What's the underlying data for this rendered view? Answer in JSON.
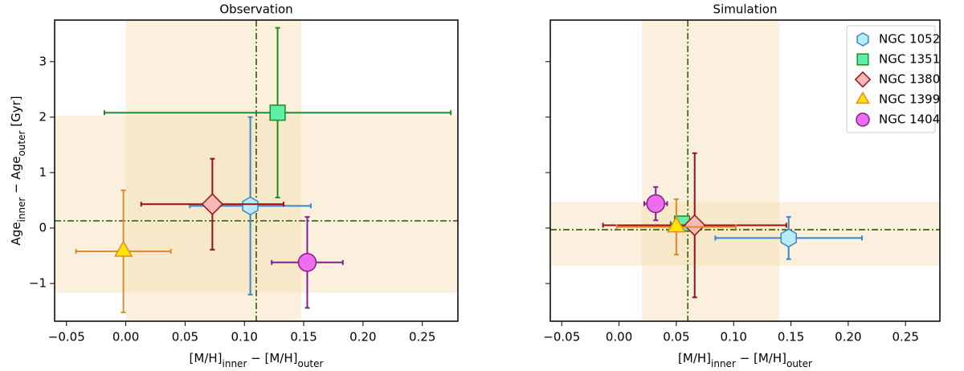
{
  "chart_data": [
    {
      "type": "scatter",
      "title": "Observation",
      "xlabel": [
        "[M/H]",
        "inner",
        " − [M/H]",
        "outer"
      ],
      "ylabel": [
        "Age",
        "inner",
        " − Age",
        "outer",
        " [Gyr]"
      ],
      "xlim": [
        -0.06,
        0.28
      ],
      "ylim": [
        -1.68,
        3.75
      ],
      "xticks": [
        {
          "value": -0.05,
          "label": "−0.05"
        },
        {
          "value": 0,
          "label": "0.00"
        },
        0.05,
        {
          "value": 0.1,
          "label": "0.10"
        },
        0.15,
        {
          "value": 0.2,
          "label": "0.20"
        },
        0.25
      ],
      "yticks": [
        {
          "value": -1,
          "label": "−1"
        },
        0,
        1,
        2,
        3
      ],
      "vline": 0.11,
      "hline": 0.13,
      "vband": [
        0.0,
        0.148
      ],
      "hband": [
        -1.17,
        2.03
      ],
      "band_color": "#f5deb3",
      "line_color": "#4a6b1a",
      "series": [
        {
          "marker": "hexagon",
          "color": "#3a86c8",
          "fill": "#b8ecf8",
          "x": [
            0.105
          ],
          "values": [
            0.4
          ],
          "xerr": [
            0.051
          ],
          "yerr": [
            1.6
          ]
        },
        {
          "marker": "square",
          "color": "#1f8a1f",
          "fill": "#5ef0a8",
          "x": [
            0.128
          ],
          "values": [
            2.08
          ],
          "xerr": [
            0.146
          ],
          "yerr": [
            1.53
          ]
        },
        {
          "marker": "diamond",
          "color": "#9b1010",
          "fill": "#f6b9b9",
          "x": [
            0.073
          ],
          "values": [
            0.43
          ],
          "xerr": [
            0.06
          ],
          "yerr": [
            0.82
          ]
        },
        {
          "marker": "triangle",
          "color": "#e08a2a",
          "fill": "#ffe600",
          "x": [
            -0.002
          ],
          "values": [
            -0.42
          ],
          "xerr": [
            0.04
          ],
          "yerr": [
            1.1
          ]
        },
        {
          "marker": "circle",
          "color": "#8b1a8b",
          "fill": "#ee6cee",
          "x": [
            0.153
          ],
          "values": [
            -0.62
          ],
          "xerr": [
            0.03
          ],
          "yerr": [
            0.82
          ]
        }
      ]
    },
    {
      "type": "scatter",
      "title": "Simulation",
      "xlabel": [
        "[M/H]",
        "inner",
        " − [M/H]",
        "outer"
      ],
      "xlim": [
        -0.06,
        0.28
      ],
      "ylim": [
        -1.68,
        3.75
      ],
      "xticks": [
        {
          "value": -0.05,
          "label": "−0.05"
        },
        {
          "value": 0,
          "label": "0.00"
        },
        0.05,
        {
          "value": 0.1,
          "label": "0.10"
        },
        0.15,
        {
          "value": 0.2,
          "label": "0.20"
        },
        0.25
      ],
      "yticks": [
        -1,
        0,
        1,
        2,
        3
      ],
      "ytick_labels": false,
      "vline": 0.06,
      "hline": -0.03,
      "vband": [
        0.02,
        0.14
      ],
      "hband": [
        -0.68,
        0.47
      ],
      "band_color": "#f5deb3",
      "line_color": "#4a6b1a",
      "legend": "upper right",
      "series": [
        {
          "name": "NGC 1052",
          "marker": "hexagon",
          "color": "#3a86c8",
          "fill": "#b8ecf8",
          "x": [
            0.148
          ],
          "values": [
            -0.18
          ],
          "xerr": [
            0.064
          ],
          "yerr": [
            0.38
          ]
        },
        {
          "name": "NGC 1351",
          "marker": "square",
          "color": "#1f8a1f",
          "fill": "#5ef0a8",
          "x": [
            0.055
          ],
          "values": [
            0.08
          ],
          "xerr": [
            0.01
          ],
          "yerr": [
            0.1
          ]
        },
        {
          "name": "NGC 1380",
          "marker": "diamond",
          "color": "#9b1010",
          "fill": "#f6b9b9",
          "x": [
            0.066
          ],
          "values": [
            0.05
          ],
          "xerr": [
            0.08
          ],
          "yerr": [
            1.3
          ]
        },
        {
          "name": "NGC 1399",
          "marker": "triangle",
          "color": "#e08a2a",
          "fill": "#ffe600",
          "x": [
            0.05
          ],
          "values": [
            0.02
          ],
          "xerr": [
            0.052
          ],
          "yerr": [
            0.5
          ]
        },
        {
          "name": "NGC 1404",
          "marker": "circle",
          "color": "#8b1a8b",
          "fill": "#ee6cee",
          "x": [
            0.032
          ],
          "values": [
            0.44
          ],
          "xerr": [
            0.01
          ],
          "yerr": [
            0.3
          ]
        }
      ]
    }
  ]
}
